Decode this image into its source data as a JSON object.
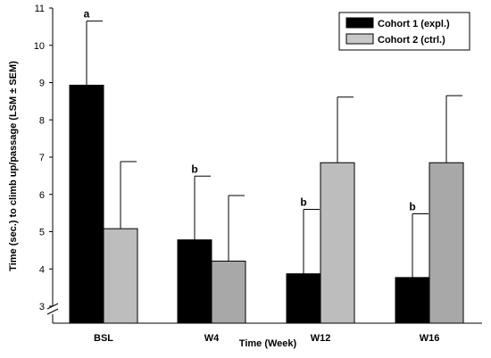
{
  "chart_data": {
    "type": "bar",
    "categories": [
      "BSL",
      "W4",
      "W12",
      "W16"
    ],
    "series": [
      {
        "name": "Cohort 1 (expl.)",
        "color": "#000000",
        "values": [
          8.93,
          4.78,
          3.87,
          3.77
        ],
        "errors": [
          1.72,
          1.71,
          1.73,
          1.71
        ],
        "significance": [
          "a",
          "b",
          "b",
          "b"
        ]
      },
      {
        "name": "Cohort 2 (ctrl.)",
        "color": "#aaaaaa",
        "values": [
          5.08,
          4.21,
          6.85,
          6.85
        ],
        "errors": [
          1.8,
          1.76,
          1.76,
          1.8
        ],
        "significance": [
          "",
          "",
          "",
          ""
        ]
      }
    ],
    "ylabel": "Time (sec.) to climb up/passage (LSM ± SEM)",
    "xlabel": "Time (Week)",
    "ylim": [
      3,
      11
    ],
    "yticks": [
      3,
      4,
      5,
      6,
      7,
      8,
      9,
      10,
      11
    ],
    "axis_break": true,
    "grid": false,
    "legend_position": "top-right"
  }
}
